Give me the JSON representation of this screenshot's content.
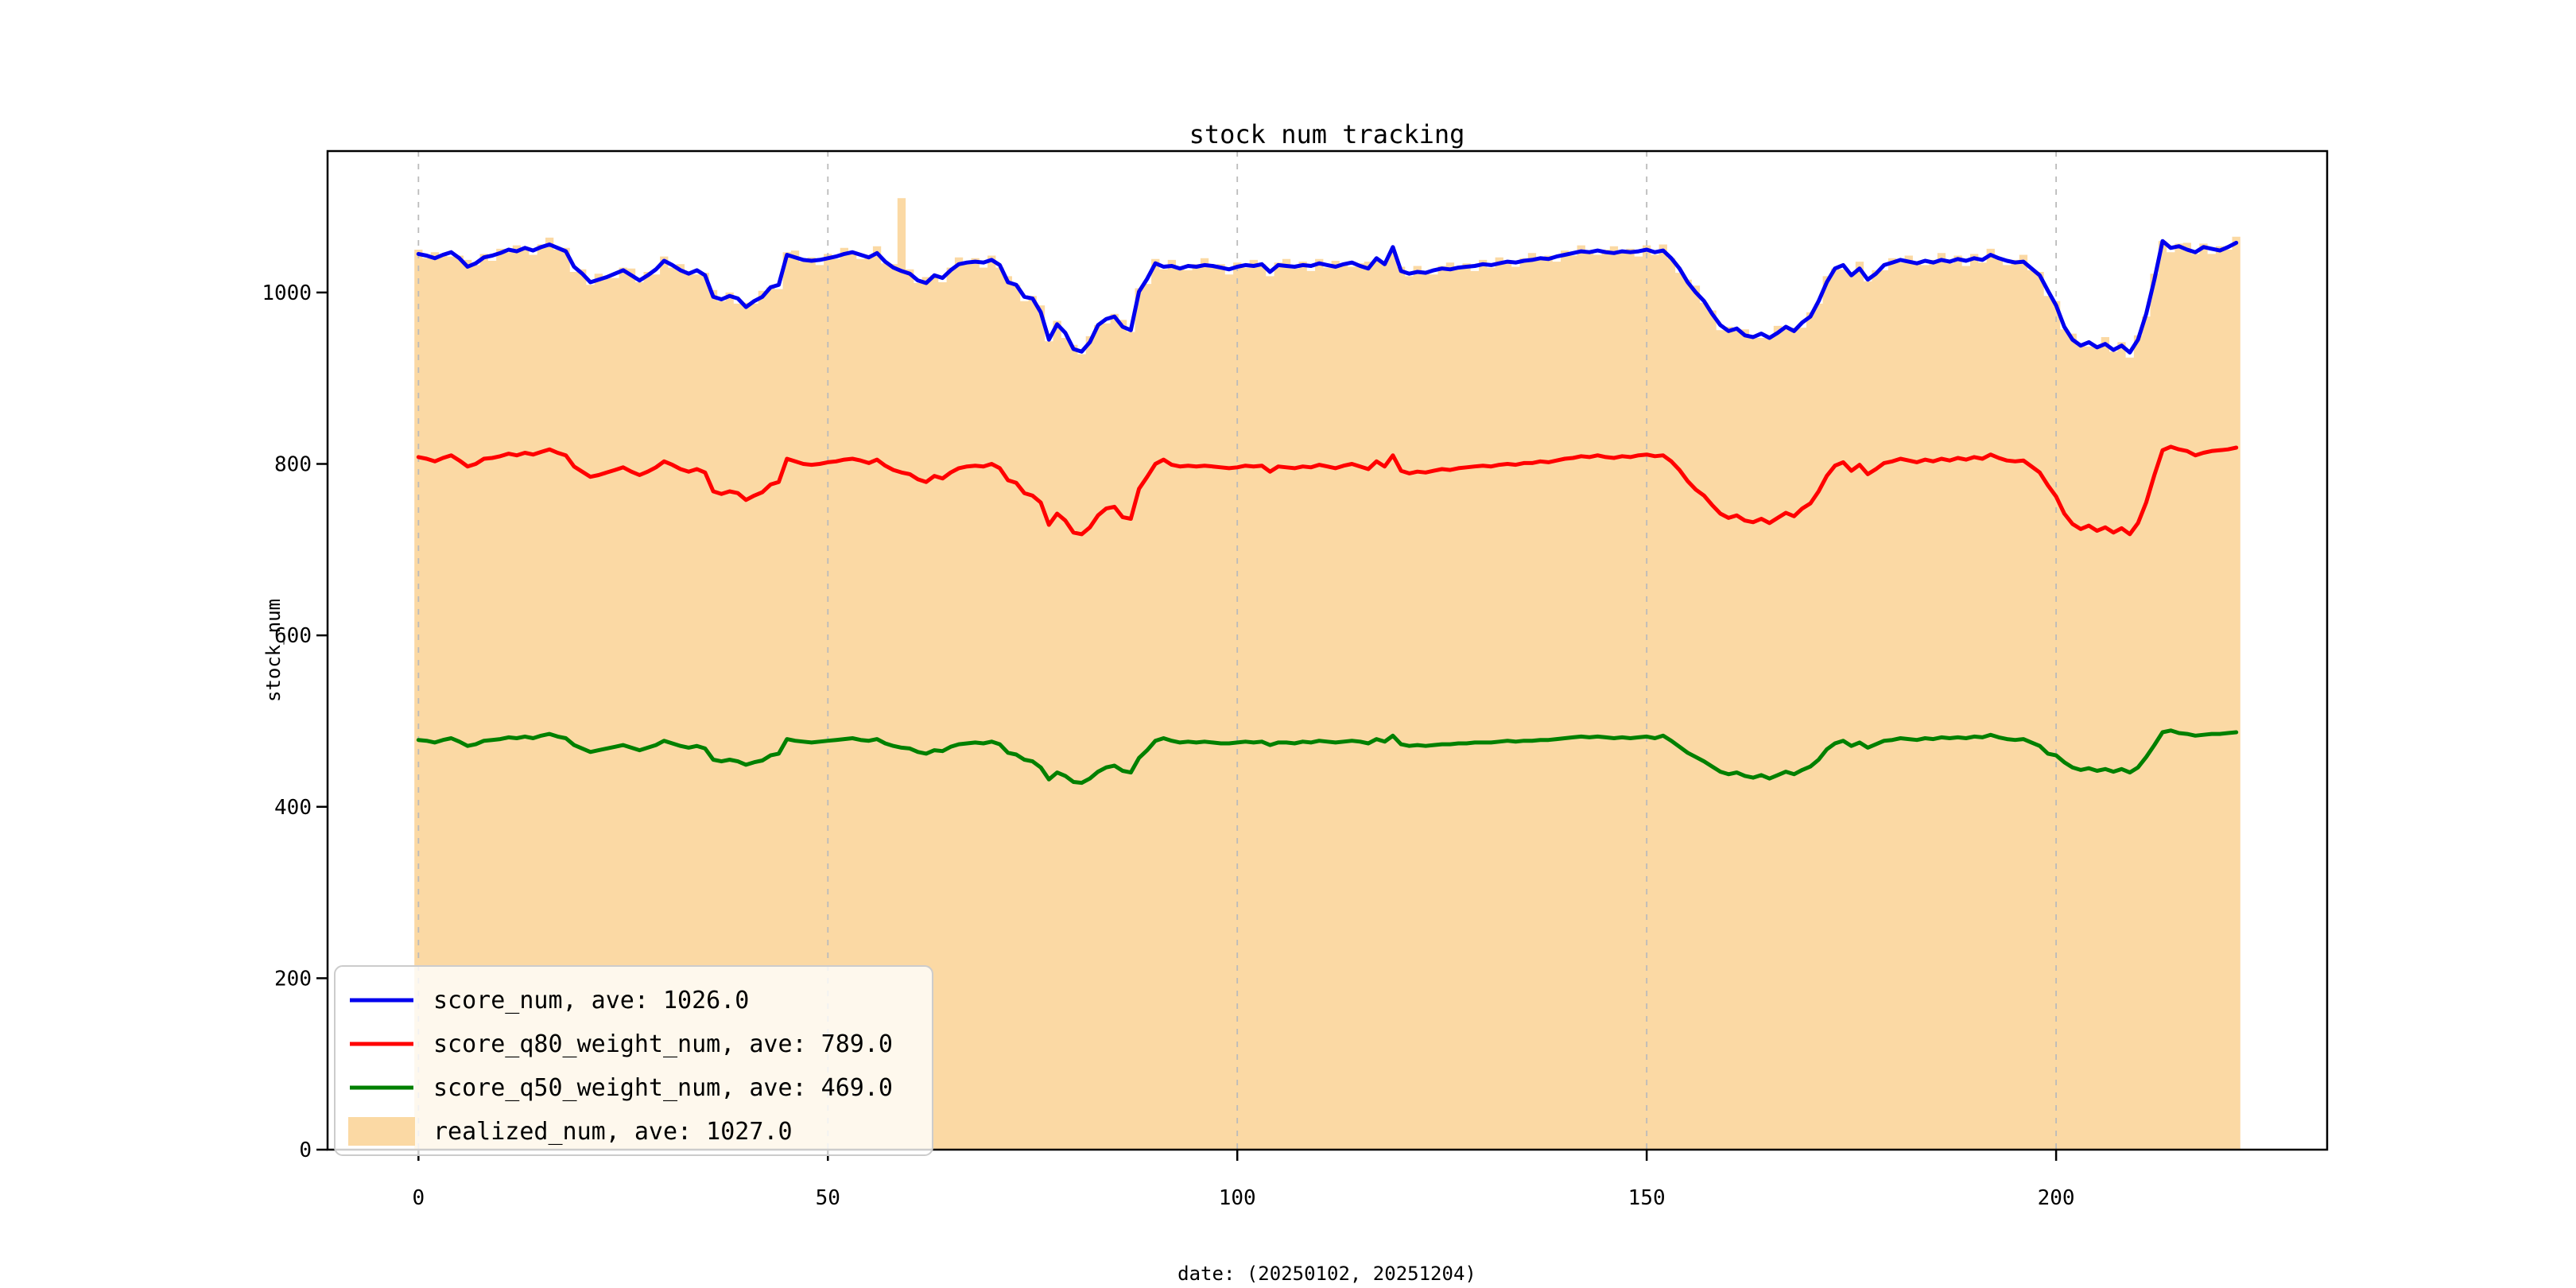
{
  "figure": {
    "title": "stock num tracking"
  },
  "chart_data": {
    "type": "line",
    "title": "stock num tracking",
    "xlabel": "date: (20250102, 20251204)",
    "ylabel": "stock_num",
    "xlim": [
      -11.1,
      233.1
    ],
    "ylim": [
      0,
      1165
    ],
    "xticks": [
      0,
      50,
      100,
      150,
      200
    ],
    "yticks": [
      0,
      200,
      400,
      600,
      800,
      1000
    ],
    "grid": {
      "vertical_dashed": true,
      "color": "#bbbbbb"
    },
    "legend": {
      "position": "lower left",
      "background": "rgba(255,255,255,0.8)",
      "border": "#cccccc"
    },
    "x_index_range": [
      0,
      222
    ],
    "series": [
      {
        "name": "score_num",
        "label": "score_num, ave: 1026.0",
        "ave": 1026.0,
        "type": "line",
        "color": "#0000ee",
        "values": [
          1045,
          1043,
          1040,
          1044,
          1047,
          1040,
          1030,
          1034,
          1041,
          1043,
          1046,
          1050,
          1048,
          1052,
          1049,
          1053,
          1056,
          1052,
          1048,
          1030,
          1022,
          1012,
          1015,
          1018,
          1022,
          1026,
          1020,
          1014,
          1020,
          1027,
          1037,
          1032,
          1026,
          1022,
          1026,
          1020,
          995,
          992,
          996,
          993,
          983,
          990,
          995,
          1006,
          1009,
          1044,
          1041,
          1038,
          1037,
          1038,
          1040,
          1042,
          1045,
          1047,
          1044,
          1041,
          1046,
          1036,
          1029,
          1025,
          1022,
          1014,
          1011,
          1020,
          1017,
          1026,
          1033,
          1035,
          1036,
          1035,
          1038,
          1032,
          1012,
          1009,
          995,
          993,
          977,
          945,
          963,
          953,
          934,
          931,
          942,
          962,
          969,
          972,
          960,
          956,
          1001,
          1016,
          1034,
          1030,
          1031,
          1028,
          1031,
          1030,
          1032,
          1031,
          1029,
          1027,
          1030,
          1032,
          1031,
          1033,
          1024,
          1032,
          1031,
          1030,
          1032,
          1031,
          1034,
          1032,
          1030,
          1033,
          1035,
          1031,
          1028,
          1040,
          1033,
          1053,
          1025,
          1022,
          1024,
          1023,
          1026,
          1028,
          1027,
          1029,
          1030,
          1031,
          1033,
          1032,
          1034,
          1036,
          1035,
          1037,
          1038,
          1040,
          1039,
          1042,
          1044,
          1046,
          1048,
          1047,
          1049,
          1047,
          1046,
          1048,
          1047,
          1048,
          1050,
          1047,
          1049,
          1040,
          1028,
          1012,
          1000,
          990,
          975,
          962,
          955,
          958,
          950,
          948,
          952,
          947,
          953,
          960,
          955,
          965,
          972,
          990,
          1012,
          1028,
          1032,
          1020,
          1028,
          1015,
          1022,
          1032,
          1035,
          1038,
          1036,
          1034,
          1037,
          1035,
          1038,
          1036,
          1039,
          1037,
          1040,
          1038,
          1044,
          1040,
          1037,
          1035,
          1036,
          1028,
          1020,
          1002,
          985,
          960,
          945,
          938,
          942,
          936,
          940,
          933,
          938,
          930,
          945,
          975,
          1015,
          1060,
          1052,
          1054,
          1050,
          1047,
          1053,
          1051,
          1049,
          1053,
          1058
        ]
      },
      {
        "name": "score_q80_weight_num",
        "label": "score_q80_weight_num, ave: 789.0",
        "ave": 789.0,
        "type": "line",
        "color": "#ff0000",
        "values": [
          808,
          806,
          803,
          807,
          810,
          804,
          797,
          800,
          806,
          807,
          809,
          812,
          810,
          813,
          811,
          814,
          817,
          813,
          810,
          797,
          791,
          785,
          787,
          790,
          793,
          796,
          791,
          787,
          791,
          796,
          803,
          799,
          794,
          791,
          794,
          790,
          768,
          765,
          768,
          766,
          758,
          763,
          767,
          776,
          779,
          806,
          803,
          800,
          799,
          800,
          802,
          803,
          805,
          806,
          804,
          801,
          805,
          798,
          793,
          790,
          788,
          782,
          779,
          786,
          783,
          790,
          795,
          797,
          798,
          797,
          800,
          795,
          781,
          778,
          766,
          763,
          755,
          729,
          742,
          734,
          720,
          718,
          726,
          740,
          748,
          750,
          738,
          736,
          771,
          785,
          800,
          805,
          799,
          797,
          798,
          797,
          798,
          797,
          796,
          795,
          796,
          798,
          797,
          798,
          791,
          797,
          796,
          795,
          797,
          796,
          799,
          797,
          795,
          798,
          800,
          797,
          794,
          803,
          797,
          810,
          792,
          789,
          791,
          790,
          792,
          794,
          793,
          795,
          796,
          797,
          798,
          797,
          799,
          800,
          799,
          801,
          801,
          803,
          802,
          804,
          806,
          807,
          809,
          808,
          810,
          808,
          807,
          809,
          808,
          810,
          811,
          809,
          810,
          803,
          793,
          780,
          770,
          763,
          752,
          742,
          737,
          740,
          734,
          732,
          736,
          731,
          737,
          743,
          739,
          748,
          754,
          768,
          786,
          798,
          802,
          792,
          799,
          788,
          794,
          801,
          803,
          806,
          804,
          802,
          805,
          803,
          806,
          804,
          807,
          805,
          808,
          806,
          811,
          807,
          804,
          803,
          804,
          797,
          790,
          775,
          762,
          742,
          730,
          724,
          728,
          722,
          726,
          720,
          725,
          718,
          731,
          755,
          787,
          816,
          820,
          817,
          815,
          810,
          813,
          815,
          816,
          817,
          819
        ]
      },
      {
        "name": "score_q50_weight_num",
        "label": "score_q50_weight_num, ave: 469.0",
        "ave": 469.0,
        "type": "line",
        "color": "#008000",
        "values": [
          478,
          477,
          475,
          478,
          480,
          476,
          471,
          473,
          477,
          478,
          479,
          481,
          480,
          482,
          480,
          483,
          485,
          482,
          480,
          472,
          468,
          464,
          466,
          468,
          470,
          472,
          469,
          466,
          469,
          472,
          477,
          474,
          471,
          469,
          471,
          468,
          455,
          453,
          455,
          453,
          449,
          452,
          454,
          460,
          462,
          479,
          477,
          476,
          475,
          476,
          477,
          478,
          479,
          480,
          478,
          477,
          479,
          474,
          471,
          469,
          468,
          464,
          462,
          466,
          465,
          470,
          473,
          474,
          475,
          474,
          476,
          473,
          463,
          461,
          455,
          453,
          446,
          432,
          440,
          436,
          429,
          428,
          433,
          441,
          446,
          448,
          442,
          440,
          457,
          466,
          477,
          480,
          477,
          475,
          476,
          475,
          476,
          475,
          474,
          474,
          475,
          476,
          475,
          476,
          472,
          475,
          475,
          474,
          476,
          475,
          477,
          476,
          475,
          476,
          477,
          476,
          474,
          479,
          476,
          483,
          473,
          471,
          472,
          471,
          472,
          473,
          473,
          474,
          474,
          475,
          475,
          475,
          476,
          477,
          476,
          477,
          477,
          478,
          478,
          479,
          480,
          481,
          482,
          481,
          482,
          481,
          480,
          481,
          480,
          481,
          482,
          480,
          483,
          477,
          470,
          463,
          458,
          453,
          447,
          441,
          438,
          440,
          436,
          434,
          437,
          433,
          437,
          441,
          438,
          443,
          447,
          455,
          467,
          474,
          477,
          471,
          475,
          469,
          473,
          477,
          478,
          480,
          479,
          478,
          480,
          479,
          481,
          480,
          481,
          480,
          482,
          481,
          484,
          481,
          479,
          478,
          479,
          475,
          471,
          462,
          460,
          452,
          446,
          443,
          445,
          442,
          444,
          441,
          444,
          440,
          446,
          458,
          472,
          487,
          489,
          486,
          485,
          483,
          484,
          485,
          485,
          486,
          487
        ]
      },
      {
        "name": "realized_num",
        "label": "realized_num, ave: 1027.0",
        "ave": 1027.0,
        "type": "area_step",
        "color": "#fbd9a4",
        "derived_from": "score_num",
        "jitter": [
          5,
          -3,
          7,
          0,
          -5,
          3,
          8,
          -2,
          4,
          -6
        ],
        "spike": {
          "index": 59,
          "value": 1110
        }
      }
    ]
  }
}
